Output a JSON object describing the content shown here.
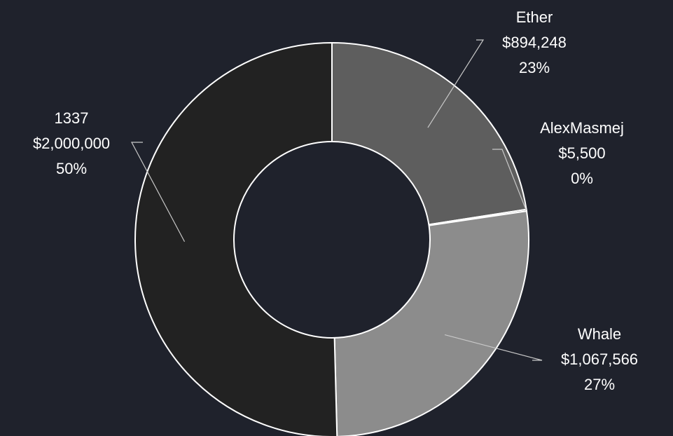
{
  "chart_data": {
    "type": "pie",
    "donut": true,
    "start_angle_deg": 0,
    "direction": "clockwise",
    "slices": [
      {
        "label": "Ether",
        "value_text": "$894,248",
        "percent_text": "23%",
        "value": 894248,
        "color": "#5e5e5e"
      },
      {
        "label": "AlexMasmej",
        "value_text": "$5,500",
        "percent_text": "0%",
        "value": 5500,
        "color": "#6a6a6a"
      },
      {
        "label": "Whale",
        "value_text": "$1,067,566",
        "percent_text": "27%",
        "value": 1067566,
        "color": "#8c8c8c"
      },
      {
        "label": "1337",
        "value_text": "$2,000,000",
        "percent_text": "50%",
        "value": 2000000,
        "color": "#222222"
      }
    ],
    "colors": {
      "background": "#1f222c",
      "stroke": "#ffffff",
      "text": "#ffffff",
      "leader": "#c8c8c8"
    }
  }
}
